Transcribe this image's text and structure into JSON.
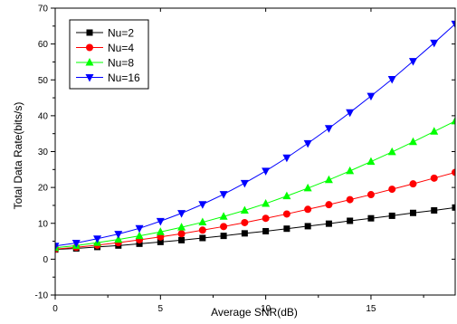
{
  "chart_data": {
    "type": "line",
    "title": "",
    "xlabel": "Average SNR(dB)",
    "ylabel": "Total Data Rate(bits/s)",
    "xlim": [
      0,
      19
    ],
    "ylim": [
      -10,
      70
    ],
    "xticks": [
      0,
      5,
      10,
      15
    ],
    "yticks": [
      -10,
      0,
      10,
      20,
      30,
      40,
      50,
      60,
      70
    ],
    "x": [
      0,
      1,
      2,
      3,
      4,
      5,
      6,
      7,
      8,
      9,
      10,
      11,
      12,
      13,
      14,
      15,
      16,
      17,
      18,
      19
    ],
    "legend_position": "top-left",
    "series": [
      {
        "name": "Nu=2",
        "color": "#000000",
        "marker": "square",
        "values": [
          2.7,
          3.0,
          3.4,
          3.8,
          4.3,
          4.8,
          5.3,
          5.9,
          6.5,
          7.2,
          7.8,
          8.5,
          9.2,
          9.9,
          10.7,
          11.4,
          12.1,
          12.9,
          13.6,
          14.4
        ]
      },
      {
        "name": "Nu=4",
        "color": "#ff0000",
        "marker": "circle",
        "values": [
          2.8,
          3.3,
          3.9,
          4.6,
          5.4,
          6.2,
          7.1,
          8.1,
          9.1,
          10.2,
          11.4,
          12.6,
          13.9,
          15.2,
          16.6,
          18.0,
          19.5,
          21.0,
          22.6,
          24.2
        ]
      },
      {
        "name": "Nu=8",
        "color": "#00ff00",
        "marker": "triangle-up",
        "values": [
          3.2,
          3.8,
          4.6,
          5.5,
          6.5,
          7.6,
          8.9,
          10.3,
          11.9,
          13.6,
          15.5,
          17.6,
          19.8,
          22.1,
          24.6,
          27.2,
          29.9,
          32.7,
          35.6,
          38.5
        ]
      },
      {
        "name": "Nu=16",
        "color": "#0000ff",
        "marker": "triangle-down",
        "values": [
          3.7,
          4.5,
          5.7,
          7.0,
          8.6,
          10.6,
          12.8,
          15.3,
          18.1,
          21.2,
          24.6,
          28.3,
          32.3,
          36.5,
          40.9,
          45.5,
          50.2,
          55.2,
          60.3,
          65.6
        ]
      }
    ]
  }
}
